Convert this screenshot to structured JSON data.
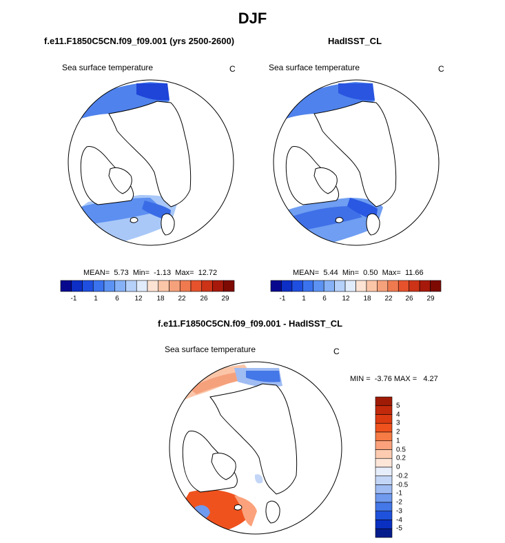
{
  "figure": {
    "title": "DJF",
    "panels": [
      {
        "title": "f.e11.F1850C5CN.f09_f09.001 (yrs 2500-2600)",
        "variable": "Sea surface temperature",
        "units": "C",
        "stats": "MEAN=  5.73  Min=  -1.13  Max=  12.72"
      },
      {
        "title": "HadISST_CL",
        "variable": "Sea surface temperature",
        "units": "C",
        "stats": "MEAN=  5.44  Min=  0.50  Max=  11.66"
      },
      {
        "title": "f.e11.F1850C5CN.f09_f09.001 - HadISST_CL",
        "variable": "Sea surface temperature",
        "units": "C",
        "stats": "MIN =  -3.76 MAX =   4.27"
      }
    ]
  },
  "chart_data": [
    {
      "type": "heatmap",
      "projection": "north-polar-stereographic",
      "title": "f.e11.F1850C5CN.f09_f09.001 (yrs 2500-2600)",
      "variable": "Sea surface temperature",
      "units": "C",
      "mean": 5.73,
      "min": -1.13,
      "max": 12.72,
      "colorbar": {
        "orientation": "horizontal",
        "tick_labels": [
          "-1",
          "1",
          "6",
          "12",
          "18",
          "22",
          "26",
          "29"
        ],
        "colors": [
          "#08088f",
          "#0d2fc6",
          "#1f4fe0",
          "#3b73ee",
          "#5c93f3",
          "#86b1f6",
          "#b5d0f9",
          "#e0ebfc",
          "#fde3d3",
          "#fbc5a8",
          "#f5a17c",
          "#ef7a50",
          "#e5522c",
          "#cc3317",
          "#a71a0b",
          "#7e0a04"
        ]
      }
    },
    {
      "type": "heatmap",
      "projection": "north-polar-stereographic",
      "title": "HadISST_CL",
      "variable": "Sea surface temperature",
      "units": "C",
      "mean": 5.44,
      "min": 0.5,
      "max": 11.66,
      "colorbar": {
        "orientation": "horizontal",
        "tick_labels": [
          "-1",
          "1",
          "6",
          "12",
          "18",
          "22",
          "26",
          "29"
        ],
        "colors": [
          "#08088f",
          "#0d2fc6",
          "#1f4fe0",
          "#3b73ee",
          "#5c93f3",
          "#86b1f6",
          "#b5d0f9",
          "#e0ebfc",
          "#fde3d3",
          "#fbc5a8",
          "#f5a17c",
          "#ef7a50",
          "#e5522c",
          "#cc3317",
          "#a71a0b",
          "#7e0a04"
        ]
      }
    },
    {
      "type": "heatmap",
      "projection": "north-polar-stereographic",
      "title": "f.e11.F1850C5CN.f09_f09.001 - HadISST_CL",
      "variable": "Sea surface temperature",
      "units": "C",
      "min": -3.76,
      "max": 4.27,
      "colorbar": {
        "orientation": "vertical",
        "tick_labels": [
          "5",
          "4",
          "3",
          "2",
          "1",
          "0.5",
          "0.2",
          "0",
          "-0.2",
          "-0.5",
          "-1",
          "-2",
          "-3",
          "-4",
          "-5"
        ],
        "colors": [
          "#a01b05",
          "#c22a0b",
          "#dc3b12",
          "#f0521e",
          "#f77b45",
          "#fba27c",
          "#fdcbb0",
          "#fde5d8",
          "#e7eefb",
          "#c3d6f7",
          "#9fbcf3",
          "#6f9aee",
          "#4477e7",
          "#1f52dc",
          "#0a30c2",
          "#051d8c"
        ]
      }
    }
  ]
}
